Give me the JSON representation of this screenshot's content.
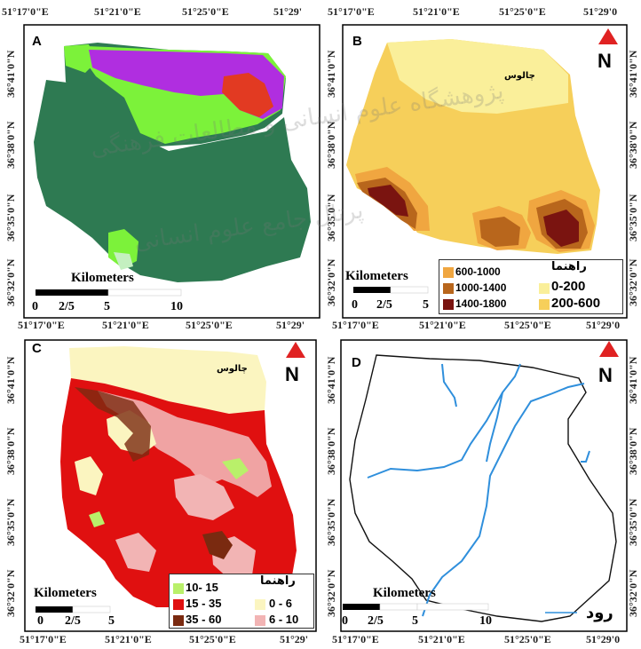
{
  "coords": {
    "lon_top": [
      "51°17'0\"E",
      "51°21'0\"E",
      "51°25'0\"E",
      "51°29'",
      "51°17'0\"E",
      "51°21'0\"E",
      "51°25'0\"E",
      "51°29'0"
    ],
    "lon_mid": [
      "51°17'0\"E",
      "51°21'0\"E",
      "51°25'0\"E",
      "51°29'",
      "51°17'0\"E",
      "51°21'0\"E",
      "51°25'0\"E",
      "51°29'0"
    ],
    "lon_bottom": [
      "51°17'0\"E",
      "51°21'0\"E",
      "51°25'0\"E",
      "51°29'",
      "51°17'0\"E",
      "51°21'0\"E",
      "51°25'0\"E",
      "51°29'0"
    ],
    "lat_left_top": [
      "36°41'0\"N",
      "36°38'0\"N",
      "36°35'0\"N",
      "36°32'0\"N"
    ],
    "lat_left_bottom": [
      "36°41'0\"N",
      "36°38'0\"N",
      "36°35'0\"N",
      "36°32'0\"N"
    ],
    "lat_mid_top": [
      "36°41'0\"N",
      "36°38'0\"N",
      "36°35'0\"N",
      "36°32'0\"N"
    ],
    "lat_mid_bottom": [
      "36°41'0\"N",
      "36°38'0\"N",
      "36°35'0\"N",
      "36°32'0\"N"
    ],
    "lat_right_top": [
      "36°41'0\"N",
      "36°38'0\"N",
      "36°35'0\"N",
      "36°32'0\"N"
    ],
    "lat_right_bottom": [
      "36°41'0\"N",
      "36°38'0\"N",
      "36°35'0\"N",
      "36°32'0\"N"
    ]
  },
  "panels": {
    "a": {
      "letter": "A",
      "scale_label": "Kilometers",
      "ticks": [
        "0",
        "2/5",
        "5",
        "10"
      ]
    },
    "b": {
      "letter": "B",
      "city": "چالوس",
      "north": "N",
      "scale_label": "Kilometers",
      "ticks": [
        "0",
        "2/5",
        "5"
      ],
      "legend_title": "راهنما",
      "legend": [
        {
          "label": "600-1000",
          "color": "#f0a640"
        },
        {
          "label": "1000-1400",
          "color": "#b8661c"
        },
        {
          "label": "1400-1800",
          "color": "#7a1410"
        },
        {
          "label": "0-200",
          "color": "#faef9a"
        },
        {
          "label": "200-600",
          "color": "#f6cf5a"
        }
      ]
    },
    "c": {
      "letter": "C",
      "city": "چالوس",
      "north": "N",
      "scale_label": "Kilometers",
      "ticks": [
        "0",
        "2/5",
        "5"
      ],
      "legend_title": "راهنما",
      "legend": [
        {
          "label": "10- 15",
          "color": "#b9f06a"
        },
        {
          "label": "15 - 35",
          "color": "#e01010"
        },
        {
          "label": "35 - 60",
          "color": "#7a2a10"
        },
        {
          "label": "0 - 6",
          "color": "#fbf5c0"
        },
        {
          "label": "6 - 10",
          "color": "#f2b4b4"
        }
      ]
    },
    "d": {
      "letter": "D",
      "north": "N",
      "scale_label": "Kilometers",
      "ticks": [
        "0",
        "2/5",
        "5",
        "10"
      ],
      "river_label": "رود",
      "river_color": "#2f8fdc"
    }
  },
  "watermark": [
    "پژوهشگاه علوم انسانی و مطالعات فرهنگی",
    "پرتال جامع علوم انسانی"
  ]
}
